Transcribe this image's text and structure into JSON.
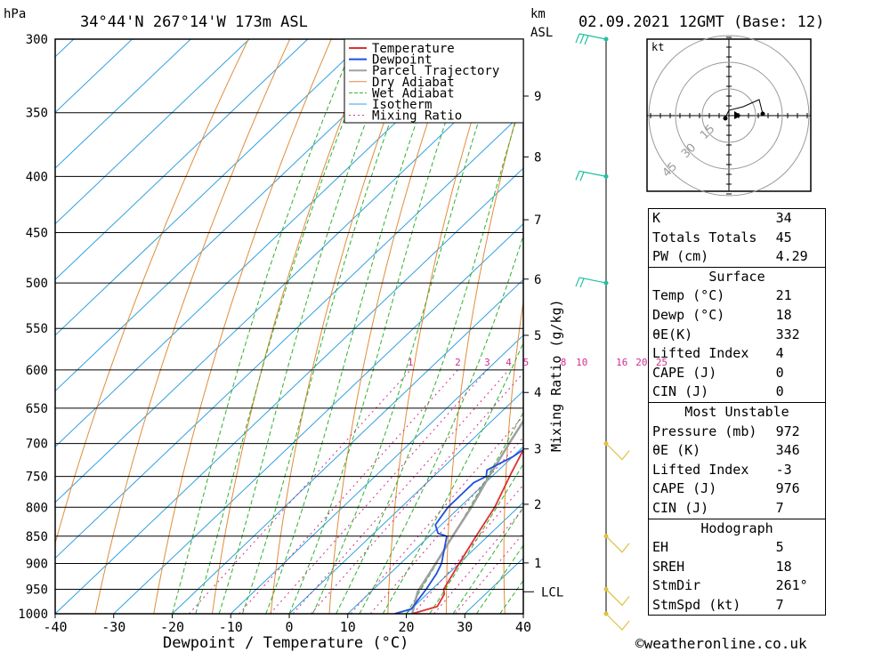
{
  "header": {
    "location": "34°44'N 267°14'W 173m ASL",
    "datetime": "02.09.2021 12GMT (Base: 12)",
    "pressure_unit": "hPa",
    "height_unit_1": "km",
    "height_unit_2": "ASL"
  },
  "footer": {
    "copyright": "©weatheronline.co.uk"
  },
  "chart_data": {
    "type": "skew-t",
    "xlabel": "Dewpoint / Temperature (°C)",
    "right_label": "Mixing Ratio (g/kg)",
    "x_ticks": [
      -40,
      -30,
      -20,
      -10,
      0,
      10,
      20,
      30,
      40
    ],
    "pressure_levels": [
      300,
      350,
      400,
      450,
      500,
      550,
      600,
      650,
      700,
      750,
      800,
      850,
      900,
      950,
      1000
    ],
    "height_ticks_km": [
      1,
      2,
      3,
      4,
      5,
      6,
      7,
      8,
      9
    ],
    "height_tick_pressures": [
      899,
      795,
      708,
      629,
      558,
      496,
      438,
      384,
      338
    ],
    "lcl_label": "LCL",
    "lcl_pressure": 955,
    "mixing_ratio_labels": [
      "1",
      "2",
      "3",
      "4",
      "5",
      "8",
      "10",
      "16",
      "20",
      "25"
    ],
    "mixing_ratio_values": [
      1,
      2,
      3,
      4,
      5,
      8,
      10,
      16,
      20,
      25
    ],
    "legend": [
      "Temperature",
      "Dewpoint",
      "Parcel Trajectory",
      "Dry Adiabat",
      "Wet Adiabat",
      "Isotherm",
      "Mixing Ratio"
    ],
    "colors": {
      "temperature": "#e03030",
      "dewpoint": "#1f4fe0",
      "parcel": "#a0a0a0",
      "dry_adiabat": "#e08c3c",
      "wet_adiabat": "#30b030",
      "isotherm": "#30a0e0",
      "mixing_ratio": "#d03090",
      "wind": "#20c0a0"
    },
    "temperature": [
      [
        1000,
        21
      ],
      [
        985,
        24
      ],
      [
        960,
        23
      ],
      [
        950,
        22
      ],
      [
        900,
        20
      ],
      [
        850,
        18
      ],
      [
        800,
        16
      ],
      [
        750,
        13
      ],
      [
        700,
        10
      ],
      [
        650,
        7.5
      ],
      [
        600,
        5
      ],
      [
        560,
        3
      ],
      [
        550,
        3
      ],
      [
        500,
        -1
      ],
      [
        450,
        -5
      ],
      [
        400,
        -10
      ],
      [
        350,
        -17
      ],
      [
        300,
        -26
      ]
    ],
    "dewpoint": [
      [
        1000,
        18
      ],
      [
        990,
        20
      ],
      [
        950,
        19
      ],
      [
        920,
        18
      ],
      [
        900,
        17
      ],
      [
        850,
        13
      ],
      [
        845,
        11
      ],
      [
        830,
        9
      ],
      [
        800,
        8
      ],
      [
        760,
        8
      ],
      [
        750,
        9
      ],
      [
        740,
        8
      ],
      [
        720,
        10
      ],
      [
        700,
        11
      ],
      [
        650,
        10
      ],
      [
        600,
        7
      ],
      [
        560,
        5
      ],
      [
        550,
        -5
      ],
      [
        540,
        8
      ],
      [
        520,
        3
      ],
      [
        500,
        1
      ],
      [
        490,
        -4
      ],
      [
        480,
        -1
      ],
      [
        470,
        -2
      ],
      [
        450,
        -8
      ],
      [
        430,
        -7
      ],
      [
        410,
        -2
      ],
      [
        400,
        -20
      ],
      [
        390,
        -16
      ],
      [
        370,
        -18
      ],
      [
        360,
        -25
      ],
      [
        350,
        -20
      ],
      [
        340,
        -26
      ],
      [
        320,
        -20
      ],
      [
        310,
        -25
      ],
      [
        300,
        -30
      ]
    ],
    "parcel": [
      [
        1000,
        21
      ],
      [
        955,
        18
      ],
      [
        900,
        16
      ],
      [
        850,
        14
      ],
      [
        800,
        12
      ],
      [
        750,
        9.5
      ],
      [
        700,
        7
      ],
      [
        650,
        4.5
      ],
      [
        600,
        1.5
      ],
      [
        550,
        -1.5
      ],
      [
        500,
        -5
      ],
      [
        450,
        -9.5
      ],
      [
        400,
        -14.5
      ],
      [
        350,
        -21
      ],
      [
        300,
        -29
      ]
    ],
    "wind_barbs": [
      {
        "p": 1000,
        "speed_kt": 5
      },
      {
        "p": 950,
        "speed_kt": 5
      },
      {
        "p": 850,
        "speed_kt": 5
      },
      {
        "p": 700,
        "speed_kt": 5
      },
      {
        "p": 500,
        "speed_kt": 10
      },
      {
        "p": 400,
        "speed_kt": 10
      },
      {
        "p": 300,
        "speed_kt": 15
      }
    ],
    "hodograph": {
      "unit": "kt",
      "rings": [
        15,
        30,
        45
      ]
    }
  },
  "indices": {
    "general": [
      {
        "k": "K",
        "v": "34"
      },
      {
        "k": "Totals Totals",
        "v": "45"
      },
      {
        "k": "PW (cm)",
        "v": "4.29"
      }
    ],
    "surface_title": "Surface",
    "surface": [
      {
        "k": "Temp (°C)",
        "v": "21"
      },
      {
        "k": "Dewp (°C)",
        "v": "18"
      },
      {
        "k": "θE(K)",
        "v": "332"
      },
      {
        "k": "Lifted Index",
        "v": "4"
      },
      {
        "k": "CAPE (J)",
        "v": "0"
      },
      {
        "k": "CIN (J)",
        "v": "0"
      }
    ],
    "mu_title": "Most Unstable",
    "mu": [
      {
        "k": "Pressure (mb)",
        "v": "972"
      },
      {
        "k": "θE (K)",
        "v": "346"
      },
      {
        "k": "Lifted Index",
        "v": "-3"
      },
      {
        "k": "CAPE (J)",
        "v": "976"
      },
      {
        "k": "CIN (J)",
        "v": "7"
      }
    ],
    "hodo_title": "Hodograph",
    "hodo": [
      {
        "k": "EH",
        "v": "5"
      },
      {
        "k": "SREH",
        "v": "18"
      },
      {
        "k": "StmDir",
        "v": "261°"
      },
      {
        "k": "StmSpd (kt)",
        "v": "7"
      }
    ]
  }
}
